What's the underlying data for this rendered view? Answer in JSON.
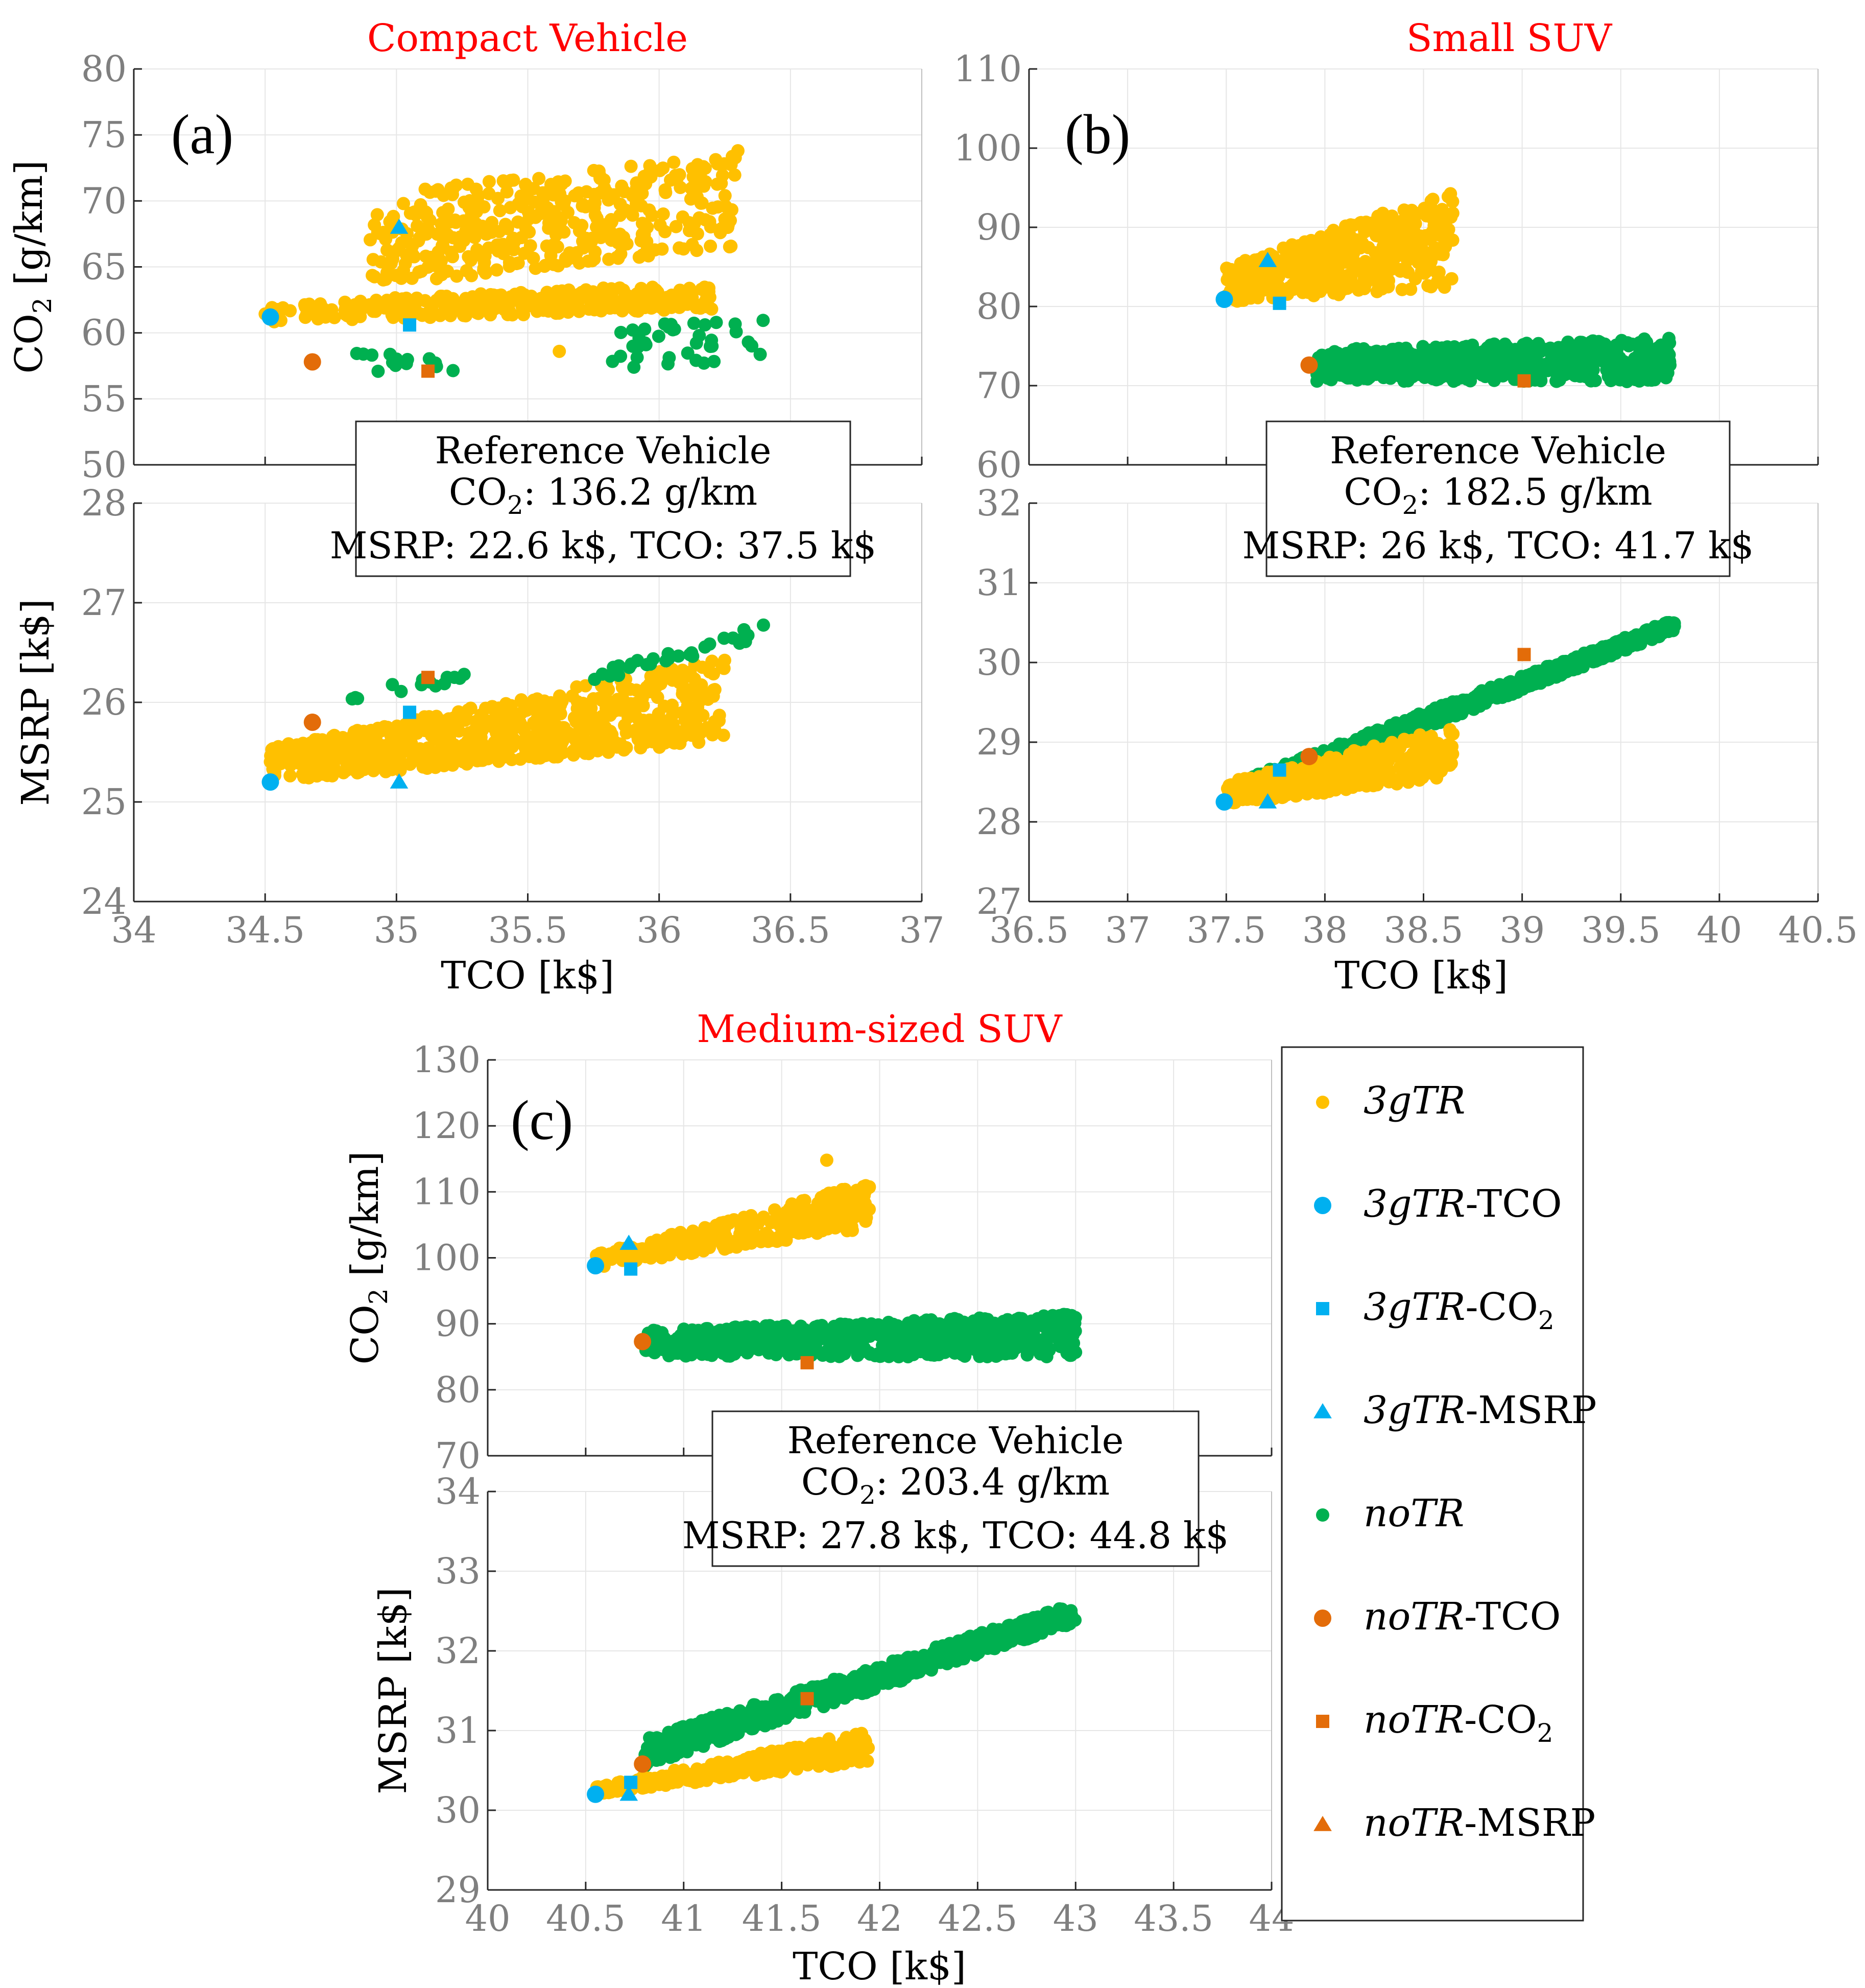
{
  "colors": {
    "3gTR": "#ffc000",
    "3gTR-opt": "#00b0f0",
    "noTR": "#00b050",
    "noTR-opt": "#e36c09",
    "title": "#ff0000",
    "tick": "#7f7f7f",
    "grid": "#e6e6e6"
  },
  "legend": {
    "placement": "right of panel (c)",
    "entries": [
      {
        "series": "3gTR",
        "prefix": "3gTR",
        "suffix": "",
        "sub": "",
        "marker": "circle-small",
        "color": "#ffc000"
      },
      {
        "series": "3gTR-TCO",
        "prefix": "3gTR",
        "suffix": "-TCO",
        "sub": "",
        "marker": "circle",
        "color": "#00b0f0"
      },
      {
        "series": "3gTR-CO2",
        "prefix": "3gTR",
        "suffix": "-CO",
        "sub": "2",
        "marker": "square",
        "color": "#00b0f0"
      },
      {
        "series": "3gTR-MSRP",
        "prefix": "3gTR",
        "suffix": "-MSRP",
        "sub": "",
        "marker": "triangle",
        "color": "#00b0f0"
      },
      {
        "series": "noTR",
        "prefix": "noTR",
        "suffix": "",
        "sub": "",
        "marker": "circle-small",
        "color": "#00b050"
      },
      {
        "series": "noTR-TCO",
        "prefix": "noTR",
        "suffix": "-TCO",
        "sub": "",
        "marker": "circle",
        "color": "#e36c09"
      },
      {
        "series": "noTR-CO2",
        "prefix": "noTR",
        "suffix": "-CO",
        "sub": "2",
        "marker": "square",
        "color": "#e36c09"
      },
      {
        "series": "noTR-MSRP",
        "prefix": "noTR",
        "suffix": "-MSRP",
        "sub": "",
        "marker": "triangle",
        "color": "#e36c09"
      }
    ]
  },
  "chart_data": [
    {
      "type": "scatter",
      "id": "a",
      "title": "Compact Vehicle",
      "panel_letter": "(a)",
      "xlabel": "TCO [k$]",
      "xlim": [
        34,
        37
      ],
      "xticks": [
        "34",
        "34.5",
        "35",
        "35.5",
        "36",
        "36.5",
        "37"
      ],
      "grid": true,
      "reference": {
        "line1": "Reference Vehicle",
        "co2_prefix": "CO",
        "co2_sub": "2",
        "co2_value": ": 136.2 g/km",
        "line3": "MSRP: 22.6 k$, TCO: 37.5 k$"
      },
      "top": {
        "ylabel_prefix": "CO",
        "ylabel_sub": "2",
        "ylabel_suffix": " [g/km]",
        "ylim": [
          50,
          80
        ],
        "yticks": [
          "50",
          "55",
          "60",
          "65",
          "70",
          "75",
          "80"
        ],
        "clouds": [
          {
            "series": "3gTR",
            "kind": "band",
            "n": 320,
            "x": [
              34.5,
              36.2
            ],
            "y0": [
              60.8,
              61.8
            ],
            "y1": [
              62.2,
              63.8
            ]
          },
          {
            "series": "3gTR",
            "kind": "band",
            "n": 380,
            "x": [
              34.9,
              36.3
            ],
            "y0": [
              63.5,
              66.5
            ],
            "y1": [
              70.5,
              73.5
            ]
          },
          {
            "series": "noTR",
            "kind": "band",
            "n": 14,
            "x": [
              34.75,
              35.25
            ],
            "y0": [
              57.0,
              57.0
            ],
            "y1": [
              58.5,
              58.5
            ]
          },
          {
            "series": "noTR",
            "kind": "band",
            "n": 38,
            "x": [
              35.8,
              36.4
            ],
            "y0": [
              57.3,
              57.5
            ],
            "y1": [
              60.5,
              61.0
            ]
          }
        ],
        "points": [
          {
            "series": "3gTR",
            "x": 35.62,
            "y": 58.6
          },
          {
            "series": "3gTR",
            "x": 36.3,
            "y": 73.8
          },
          {
            "series": "3gTR-TCO",
            "x": 34.52,
            "y": 61.2
          },
          {
            "series": "3gTR-CO2",
            "x": 35.05,
            "y": 60.6
          },
          {
            "series": "3gTR-MSRP",
            "x": 35.01,
            "y": 68.0
          },
          {
            "series": "noTR-TCO",
            "x": 34.68,
            "y": 57.8
          },
          {
            "series": "noTR-CO2",
            "x": 35.12,
            "y": 57.1
          }
        ]
      },
      "bottom": {
        "ylabel": "MSRP [k$]",
        "ylim": [
          24,
          28
        ],
        "yticks": [
          "24",
          "25",
          "26",
          "27",
          "28"
        ],
        "clouds": [
          {
            "series": "3gTR",
            "kind": "band",
            "n": 700,
            "x": [
              34.52,
              36.25
            ],
            "y0": [
              25.2,
              25.6
            ],
            "y1": [
              25.55,
              26.45
            ]
          },
          {
            "series": "noTR",
            "kind": "band",
            "n": 14,
            "x": [
              34.8,
              35.3
            ],
            "y0": [
              25.95,
              26.25
            ],
            "y1": [
              26.15,
              26.3
            ]
          },
          {
            "series": "noTR",
            "kind": "band",
            "n": 30,
            "x": [
              35.75,
              36.4
            ],
            "y0": [
              26.2,
              26.65
            ],
            "y1": [
              26.3,
              26.8
            ]
          }
        ],
        "points": [
          {
            "series": "3gTR-TCO",
            "x": 34.52,
            "y": 25.2
          },
          {
            "series": "3gTR-CO2",
            "x": 35.05,
            "y": 25.9
          },
          {
            "series": "3gTR-MSRP",
            "x": 35.01,
            "y": 25.2
          },
          {
            "series": "noTR-TCO",
            "x": 34.68,
            "y": 25.8
          },
          {
            "series": "noTR-CO2",
            "x": 35.12,
            "y": 26.25
          }
        ]
      }
    },
    {
      "type": "scatter",
      "id": "b",
      "title": "Small SUV",
      "panel_letter": "(b)",
      "xlabel": "TCO [k$]",
      "xlim": [
        36.5,
        40.5
      ],
      "xticks": [
        "36.5",
        "37",
        "37.5",
        "38",
        "38.5",
        "39",
        "39.5",
        "40",
        "40.5"
      ],
      "grid": true,
      "reference": {
        "line1": "Reference Vehicle",
        "co2_prefix": "CO",
        "co2_sub": "2",
        "co2_value": ": 182.5 g/km",
        "line3": "MSRP: 26 k$, TCO: 41.7 k$"
      },
      "top": {
        "ylabel_prefix": "CO",
        "ylabel_sub": "2",
        "ylabel_suffix": " [g/km]",
        "ylim": [
          60,
          110
        ],
        "yticks": [
          "60",
          "70",
          "80",
          "90",
          "100",
          "110"
        ],
        "clouds": [
          {
            "series": "3gTR",
            "kind": "band",
            "n": 450,
            "x": [
              37.5,
              38.65
            ],
            "y0": [
              80.5,
              82.5
            ],
            "y1": [
              85.0,
              95.0
            ]
          },
          {
            "series": "noTR",
            "kind": "band",
            "n": 600,
            "x": [
              37.95,
              39.75
            ],
            "y0": [
              70.5,
              70.5
            ],
            "y1": [
              74.5,
              76.0
            ]
          }
        ],
        "points": [
          {
            "series": "3gTR-TCO",
            "x": 37.49,
            "y": 80.9
          },
          {
            "series": "3gTR-CO2",
            "x": 37.77,
            "y": 80.4
          },
          {
            "series": "3gTR-MSRP",
            "x": 37.71,
            "y": 85.8
          },
          {
            "series": "noTR-TCO",
            "x": 37.92,
            "y": 72.6
          },
          {
            "series": "noTR-CO2",
            "x": 39.01,
            "y": 70.6
          }
        ]
      },
      "bottom": {
        "ylabel": "",
        "ylim": [
          27,
          32
        ],
        "yticks": [
          "27",
          "28",
          "29",
          "30",
          "31",
          "32"
        ],
        "clouds": [
          {
            "series": "noTR",
            "kind": "band",
            "n": 650,
            "x": [
              37.6,
              39.78
            ],
            "y0": [
              28.3,
              30.4
            ],
            "y1": [
              28.55,
              30.55
            ]
          },
          {
            "series": "3gTR",
            "kind": "band",
            "n": 380,
            "x": [
              37.5,
              38.65
            ],
            "y0": [
              28.22,
              28.55
            ],
            "y1": [
              28.5,
              29.2
            ]
          }
        ],
        "points": [
          {
            "series": "3gTR-TCO",
            "x": 37.49,
            "y": 28.25
          },
          {
            "series": "3gTR-CO2",
            "x": 37.77,
            "y": 28.65
          },
          {
            "series": "3gTR-MSRP",
            "x": 37.71,
            "y": 28.25
          },
          {
            "series": "noTR-TCO",
            "x": 37.92,
            "y": 28.82
          },
          {
            "series": "noTR-CO2",
            "x": 39.01,
            "y": 30.1
          }
        ]
      }
    },
    {
      "type": "scatter",
      "id": "c",
      "title": "Medium-sized SUV",
      "panel_letter": "(c)",
      "xlabel": "TCO [k$]",
      "xlim": [
        40,
        44
      ],
      "xticks": [
        "40",
        "40.5",
        "41",
        "41.5",
        "42",
        "42.5",
        "43",
        "43.5",
        "44"
      ],
      "grid": true,
      "reference": {
        "line1": "Reference Vehicle",
        "co2_prefix": "CO",
        "co2_sub": "2",
        "co2_value": ": 203.4 g/km",
        "line3": "MSRP: 27.8 k$, TCO: 44.8 k$"
      },
      "top": {
        "ylabel_prefix": "CO",
        "ylabel_sub": "2",
        "ylabel_suffix": " [g/km]",
        "ylim": [
          70,
          130
        ],
        "yticks": [
          "70",
          "80",
          "90",
          "100",
          "110",
          "120",
          "130"
        ],
        "clouds": [
          {
            "series": "3gTR",
            "kind": "band",
            "n": 300,
            "x": [
              40.55,
              41.95
            ],
            "y0": [
              98.5,
              104.5
            ],
            "y1": [
              100.5,
              111.5
            ]
          },
          {
            "series": "noTR",
            "kind": "band",
            "n": 700,
            "x": [
              40.8,
              43.0
            ],
            "y0": [
              85.0,
              85.0
            ],
            "y1": [
              89.0,
              91.5
            ]
          }
        ],
        "points": [
          {
            "series": "3gTR",
            "x": 41.73,
            "y": 114.8
          },
          {
            "series": "3gTR-TCO",
            "x": 40.55,
            "y": 98.8
          },
          {
            "series": "3gTR-CO2",
            "x": 40.73,
            "y": 98.3
          },
          {
            "series": "3gTR-MSRP",
            "x": 40.72,
            "y": 102.2
          },
          {
            "series": "noTR-TCO",
            "x": 40.79,
            "y": 87.3
          },
          {
            "series": "noTR-CO2",
            "x": 41.63,
            "y": 84.1
          }
        ]
      },
      "bottom": {
        "ylabel": "MSRP [k$]",
        "ylim": [
          29,
          34
        ],
        "yticks": [
          "29",
          "30",
          "31",
          "32",
          "33",
          "34"
        ],
        "clouds": [
          {
            "series": "noTR",
            "kind": "band",
            "n": 650,
            "x": [
              40.8,
              43.0
            ],
            "y0": [
              30.55,
              32.35
            ],
            "y1": [
              30.9,
              32.6
            ]
          },
          {
            "series": "3gTR",
            "kind": "band",
            "n": 260,
            "x": [
              40.55,
              41.95
            ],
            "y0": [
              30.2,
              30.6
            ],
            "y1": [
              30.3,
              31.0
            ]
          }
        ],
        "points": [
          {
            "series": "3gTR-TCO",
            "x": 40.55,
            "y": 30.2
          },
          {
            "series": "3gTR-CO2",
            "x": 40.73,
            "y": 30.35
          },
          {
            "series": "3gTR-MSRP",
            "x": 40.72,
            "y": 30.2
          },
          {
            "series": "noTR-TCO",
            "x": 40.79,
            "y": 30.58
          },
          {
            "series": "noTR-CO2",
            "x": 41.63,
            "y": 31.4
          }
        ]
      }
    }
  ]
}
